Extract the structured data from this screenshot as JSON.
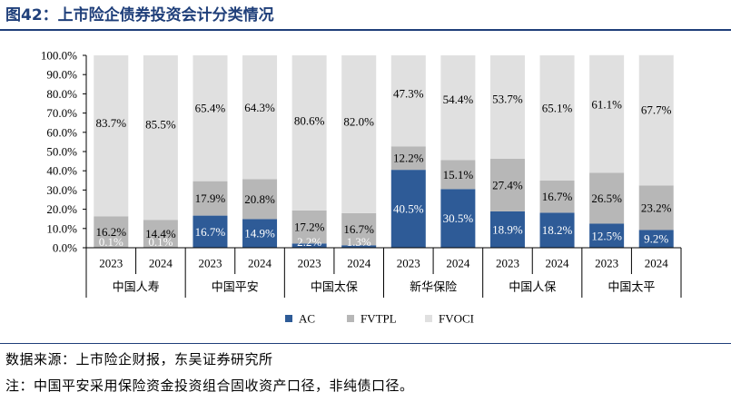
{
  "title": "图42：上市险企债券投资会计分类情况",
  "source_note": "数据来源：上市险企财报，东吴证券研究所",
  "footnote": "注：中国平安采用保险资金投资组合固收资产口径，非纯债口径。",
  "chart_data": {
    "type": "bar",
    "stacked": true,
    "normalized": true,
    "ylim": [
      0,
      100
    ],
    "yticks": [
      "0.0%",
      "10.0%",
      "20.0%",
      "30.0%",
      "40.0%",
      "50.0%",
      "60.0%",
      "70.0%",
      "80.0%",
      "90.0%",
      "100.0%"
    ],
    "categories": [
      "2023",
      "2024",
      "2023",
      "2024",
      "2023",
      "2024",
      "2023",
      "2024",
      "2023",
      "2024",
      "2023",
      "2024"
    ],
    "groups": [
      "中国人寿",
      "中国平安",
      "中国太保",
      "新华保险",
      "中国人保",
      "中国太平"
    ],
    "legend_position": "bottom",
    "series": [
      {
        "name": "AC",
        "color": "#2e5b97",
        "label_color": "#ffffff",
        "values": [
          0.1,
          0.1,
          16.7,
          14.9,
          2.2,
          1.3,
          40.5,
          30.5,
          18.9,
          18.2,
          12.5,
          9.2
        ],
        "labels": [
          "0.1%",
          "0.1%",
          "16.7%",
          "14.9%",
          "2.2%",
          "1.3%",
          "40.5%",
          "30.5%",
          "18.9%",
          "18.2%",
          "12.5%",
          "9.2%"
        ]
      },
      {
        "name": "FVTPL",
        "color": "#b7b7b7",
        "label_color": "#000000",
        "values": [
          16.2,
          14.4,
          17.9,
          20.8,
          17.2,
          16.7,
          12.2,
          15.1,
          27.4,
          16.7,
          26.5,
          23.2
        ],
        "labels": [
          "16.2%",
          "14.4%",
          "17.9%",
          "20.8%",
          "17.2%",
          "16.7%",
          "12.2%",
          "15.1%",
          "27.4%",
          "16.7%",
          "26.5%",
          "23.2%"
        ]
      },
      {
        "name": "FVOCI",
        "color": "#e0e0e0",
        "label_color": "#000000",
        "values": [
          83.7,
          85.5,
          65.4,
          64.3,
          80.6,
          82.0,
          47.3,
          54.4,
          53.7,
          65.1,
          61.1,
          67.7
        ],
        "labels": [
          "83.7%",
          "85.5%",
          "65.4%",
          "64.3%",
          "80.6%",
          "82.0%",
          "47.3%",
          "54.4%",
          "53.7%",
          "65.1%",
          "61.1%",
          "67.7%"
        ]
      }
    ]
  }
}
